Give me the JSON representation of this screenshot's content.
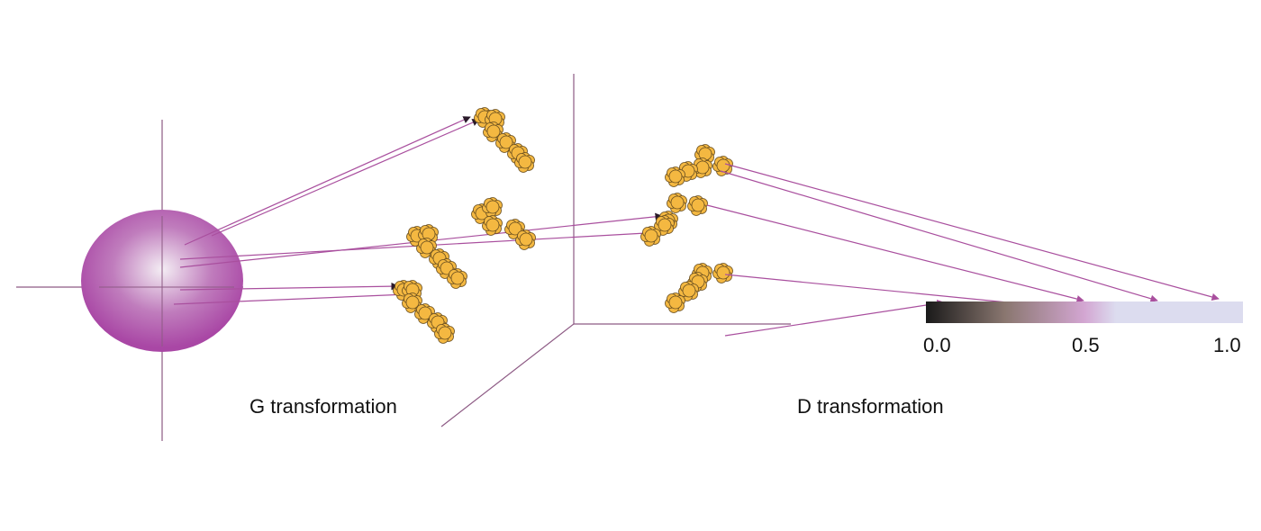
{
  "labels": {
    "g_transformation": "G transformation",
    "d_transformation": "D transformation"
  },
  "colorbar": {
    "ticks": [
      "0.0",
      "0.5",
      "1.0"
    ],
    "gradient": [
      "#1a1a1a",
      "#d3a6d2",
      "#dcdcef"
    ]
  },
  "colors": {
    "sphere_edge": "#a947a5",
    "sphere_center": "#f4eef4",
    "blob_fill": "#f4b841",
    "arrow": "#a94f9e",
    "axis": "#8d5a84"
  }
}
